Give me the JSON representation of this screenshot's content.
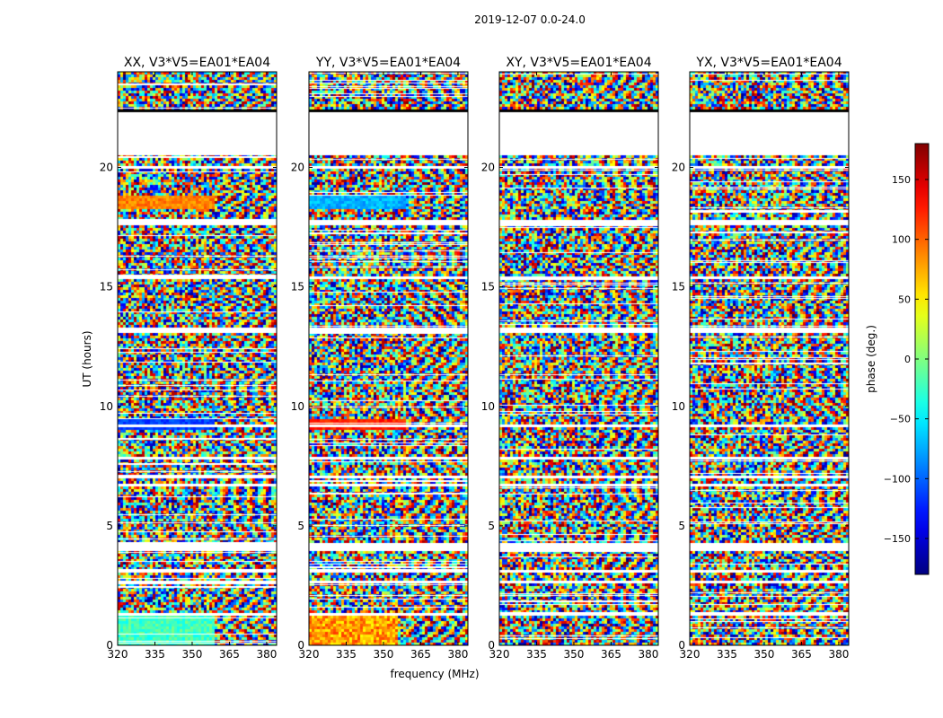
{
  "figure_title": "2019-12-07 0.0-24.0",
  "chart_data": {
    "type": "heatmap",
    "title": "2019-12-07 0.0-24.0",
    "xlabel": "frequency (MHz)",
    "ylabel": "UT (hours)",
    "xlim": [
      320,
      384
    ],
    "ylim": [
      0,
      24
    ],
    "x_ticks": [
      320,
      335,
      350,
      365,
      380
    ],
    "y_ticks": [
      0,
      5,
      10,
      15,
      20
    ],
    "panels": [
      {
        "title": "XX, V3*V5=EA01*EA04"
      },
      {
        "title": "YY, V3*V5=EA01*EA04"
      },
      {
        "title": "XY, V3*V5=EA01*EA04"
      },
      {
        "title": "YX, V3*V5=EA01*EA04"
      }
    ],
    "colorbar": {
      "label": "phase (deg.)",
      "range": [
        -180,
        180
      ],
      "ticks": [
        -150,
        -100,
        -50,
        0,
        50,
        100,
        150
      ],
      "colormap": "jet"
    },
    "gaps_hours": [
      [
        20.5,
        22.3
      ],
      [
        20.0,
        20.06
      ],
      [
        19.45,
        19.52
      ],
      [
        17.6,
        17.8
      ],
      [
        16.4,
        16.46
      ],
      [
        15.3,
        15.4
      ],
      [
        15.05,
        15.1
      ],
      [
        13.7,
        13.75
      ],
      [
        13.1,
        13.28
      ],
      [
        12.35,
        12.38
      ],
      [
        11.6,
        11.65
      ],
      [
        9.75,
        9.85
      ],
      [
        9.1,
        9.2
      ],
      [
        8.65,
        8.72
      ],
      [
        7.8,
        7.85
      ],
      [
        7.0,
        7.05
      ],
      [
        6.6,
        6.8
      ],
      [
        6.3,
        6.35
      ],
      [
        4.1,
        4.3
      ],
      [
        3.9,
        4.05
      ],
      [
        3.0,
        3.1
      ],
      [
        2.6,
        2.75
      ],
      [
        1.25,
        1.4
      ],
      [
        0.4,
        0.45
      ]
    ]
  }
}
